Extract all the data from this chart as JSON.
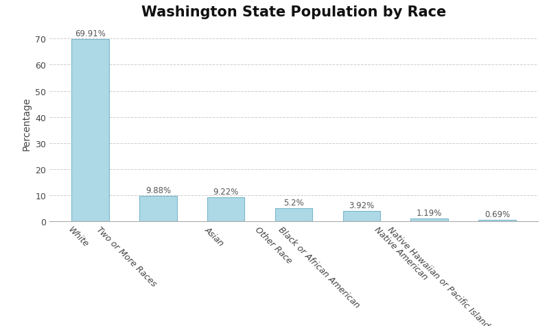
{
  "title": "Washington State Population by Race",
  "categories": [
    "White",
    "Two or More Races",
    "Asian",
    "Other Race",
    "Black or African American",
    "Native American",
    "Native Hawaiian or Pacific Islander"
  ],
  "values": [
    69.91,
    9.88,
    9.22,
    5.2,
    3.92,
    1.19,
    0.69
  ],
  "labels": [
    "69.91%",
    "9.88%",
    "9.22%",
    "5.2%",
    "3.92%",
    "1.19%",
    "0.69%"
  ],
  "bar_color": "#add8e6",
  "bar_edgecolor": "#7ab8cc",
  "ylabel": "Percentage",
  "ylim": [
    0,
    75
  ],
  "yticks": [
    0,
    10,
    20,
    30,
    40,
    50,
    60,
    70
  ],
  "background_color": "#ffffff",
  "grid_color": "#cccccc",
  "title_fontsize": 15,
  "label_fontsize": 8.5,
  "tick_fontsize": 9,
  "ylabel_fontsize": 10,
  "bar_width": 0.55
}
